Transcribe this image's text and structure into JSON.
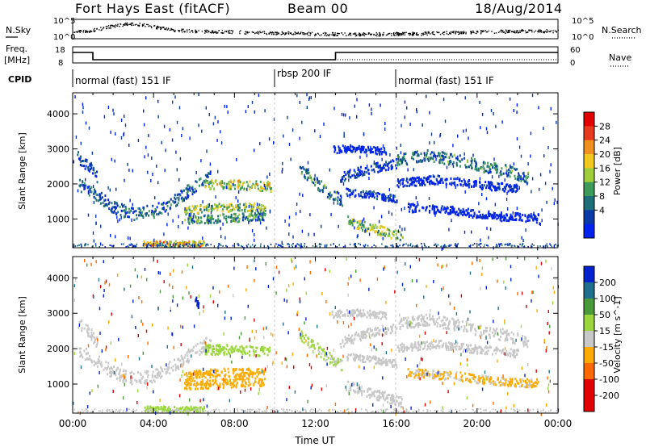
{
  "header": {
    "radar_title": "Fort Hays East (fitACF)",
    "beam": "Beam 00",
    "date": "18/Aug/2014"
  },
  "colors": {
    "power_scale": [
      "#0022ee",
      "#0a3aa8",
      "#1e6e7a",
      "#3d9a5a",
      "#9fce3c",
      "#f0c81e",
      "#f0901e",
      "#e83a1e",
      "#e00000"
    ],
    "velocity_scale": [
      "#e00000",
      "#ff6a00",
      "#ffaa00",
      "#c8c8c8",
      "#9bd63c",
      "#4a9a3a",
      "#1e6e8c",
      "#0022cc"
    ]
  },
  "chart_data": [
    {
      "type": "line",
      "name_left": "N.Sky",
      "name_right": "N.Search",
      "left_ticks": [
        "10^5",
        "10^0"
      ],
      "right_ticks": [
        "10^5",
        "10^0"
      ],
      "x_range_hours": [
        0,
        24
      ]
    },
    {
      "type": "line",
      "ylabel_left": [
        "Freq.",
        "[MHz]"
      ],
      "left_ticks": [
        "18",
        "8"
      ],
      "ylabel_right": "Nave",
      "right_ticks": [
        "60",
        "0"
      ],
      "frequency_steps": [
        {
          "from": 0,
          "to": 1.0,
          "value": 15.5
        },
        {
          "from": 1.0,
          "to": 10.0,
          "value": 11.0
        },
        {
          "from": 10.0,
          "to": 11.5,
          "value": 11.0
        },
        {
          "from": 11.5,
          "to": 13.0,
          "value": 11.0
        },
        {
          "from": 13.0,
          "to": 24.0,
          "value": 15.5
        }
      ]
    },
    {
      "type": "table",
      "label": "CPID",
      "segments": [
        {
          "text": "normal (fast) 151 IF",
          "start": 0,
          "end": 10.0
        },
        {
          "text": "rbsp 200 IF",
          "start": 10.0,
          "end": 16.0
        },
        {
          "text": "normal (fast) 151 IF",
          "start": 16.0,
          "end": 24.0
        }
      ]
    },
    {
      "type": "heatmap",
      "ylabel": "Slant Range [km]",
      "yticks": [
        "1000",
        "2000",
        "3000",
        "4000"
      ],
      "ylim": [
        180,
        4600
      ],
      "colorbar_label": "Power [dB]",
      "colorbar_ticks": [
        "4",
        "8",
        "12",
        "16",
        "20",
        "24",
        "28"
      ],
      "bands": [
        {
          "points": [
            [
              0.3,
              2000
            ],
            [
              1.0,
              1750
            ],
            [
              2.0,
              1350
            ],
            [
              3.0,
              1180
            ],
            [
              4.0,
              1250
            ],
            [
              5.0,
              1550
            ],
            [
              6.0,
              1950
            ],
            [
              6.8,
              2250
            ]
          ],
          "width": 180,
          "peak": 14
        },
        {
          "points": [
            [
              0.2,
              2800
            ],
            [
              0.8,
              2500
            ],
            [
              1.2,
              2200
            ]
          ],
          "width": 160,
          "peak": 10
        },
        {
          "points": [
            [
              6.5,
              2000
            ],
            [
              8.0,
              2000
            ],
            [
              9.8,
              1950
            ]
          ],
          "width": 140,
          "peak": 24
        },
        {
          "points": [
            [
              5.5,
              1250
            ],
            [
              7.0,
              1350
            ],
            [
              9.5,
              1350
            ]
          ],
          "width": 120,
          "peak": 22
        },
        {
          "points": [
            [
              5.5,
              1000
            ],
            [
              7.5,
              1050
            ],
            [
              9.5,
              1100
            ]
          ],
          "width": 120,
          "peak": 18
        },
        {
          "points": [
            [
              3.5,
              320
            ],
            [
              6.5,
              320
            ]
          ],
          "width": 80,
          "peak": 26
        },
        {
          "points": [
            [
              11.2,
              2450
            ],
            [
              11.8,
              2150
            ],
            [
              12.6,
              1800
            ],
            [
              13.3,
              1550
            ]
          ],
          "width": 160,
          "peak": 16
        },
        {
          "points": [
            [
              13.5,
              1000
            ],
            [
              14.5,
              800
            ],
            [
              15.5,
              650
            ],
            [
              16.3,
              500
            ]
          ],
          "width": 140,
          "peak": 22
        },
        {
          "points": [
            [
              13.5,
              1800
            ],
            [
              15.0,
              1700
            ],
            [
              16.0,
              1600
            ]
          ],
          "width": 100,
          "peak": 10
        },
        {
          "points": [
            [
              16.0,
              2700
            ],
            [
              17.5,
              2850
            ],
            [
              19.0,
              2700
            ],
            [
              20.5,
              2500
            ],
            [
              21.5,
              2400
            ],
            [
              22.5,
              2200
            ]
          ],
          "width": 160,
          "peak": 16
        },
        {
          "points": [
            [
              16.0,
              2050
            ],
            [
              18.0,
              2150
            ],
            [
              20.0,
              2000
            ],
            [
              22.0,
              1900
            ]
          ],
          "width": 120,
          "peak": 8
        },
        {
          "points": [
            [
              13.2,
              2200
            ],
            [
              14.5,
              2450
            ],
            [
              16.0,
              2600
            ]
          ],
          "width": 140,
          "peak": 10
        },
        {
          "points": [
            [
              12.8,
              3000
            ],
            [
              14.0,
              3050
            ],
            [
              15.5,
              2950
            ]
          ],
          "width": 100,
          "peak": 6
        },
        {
          "points": [
            [
              16.5,
              1350
            ],
            [
              19.0,
              1250
            ],
            [
              21.0,
              1100
            ],
            [
              23.0,
              1050
            ]
          ],
          "width": 120,
          "peak": 6
        }
      ]
    },
    {
      "type": "heatmap",
      "ylabel": "Slant Range [km]",
      "yticks": [
        "1000",
        "2000",
        "3000",
        "4000"
      ],
      "ylim": [
        180,
        4600
      ],
      "colorbar_label": "Velocity [m s^-1]",
      "colorbar_ticks": [
        "200",
        "100",
        "50",
        "15",
        "-15",
        "-50",
        "-100",
        "-200"
      ],
      "xlabel": "Time UT",
      "xticks": [
        "00:00",
        "04:00",
        "08:00",
        "12:00",
        "16:00",
        "20:00",
        "00:00"
      ],
      "xlim": [
        0,
        24
      ],
      "bands": [
        {
          "points": [
            [
              0.3,
              2000
            ],
            [
              1.0,
              1750
            ],
            [
              2.0,
              1350
            ],
            [
              3.0,
              1180
            ],
            [
              4.0,
              1250
            ],
            [
              5.0,
              1550
            ],
            [
              6.0,
              1950
            ],
            [
              6.8,
              2250
            ]
          ],
          "width": 180,
          "vel": 0
        },
        {
          "points": [
            [
              0.2,
              2800
            ],
            [
              0.8,
              2500
            ],
            [
              1.2,
              2200
            ]
          ],
          "width": 160,
          "vel": 0
        },
        {
          "points": [
            [
              6.5,
              2000
            ],
            [
              8.0,
              2000
            ],
            [
              9.8,
              1950
            ]
          ],
          "width": 140,
          "vel": 30
        },
        {
          "points": [
            [
              5.5,
              1250
            ],
            [
              7.0,
              1350
            ],
            [
              9.5,
              1350
            ]
          ],
          "width": 120,
          "vel": -40
        },
        {
          "points": [
            [
              5.5,
              1000
            ],
            [
              7.5,
              1050
            ],
            [
              9.5,
              1100
            ]
          ],
          "width": 120,
          "vel": -60
        },
        {
          "points": [
            [
              3.5,
              320
            ],
            [
              6.5,
              320
            ]
          ],
          "width": 80,
          "vel": 30
        },
        {
          "points": [
            [
              11.2,
              2450
            ],
            [
              11.8,
              2150
            ],
            [
              12.6,
              1800
            ],
            [
              13.3,
              1550
            ]
          ],
          "width": 160,
          "vel": 20
        },
        {
          "points": [
            [
              13.5,
              1000
            ],
            [
              14.5,
              800
            ],
            [
              15.5,
              650
            ],
            [
              16.3,
              500
            ]
          ],
          "width": 140,
          "vel": 0
        },
        {
          "points": [
            [
              13.5,
              1800
            ],
            [
              15.0,
              1700
            ],
            [
              16.0,
              1600
            ]
          ],
          "width": 100,
          "vel": 0
        },
        {
          "points": [
            [
              16.0,
              2700
            ],
            [
              17.5,
              2850
            ],
            [
              19.0,
              2700
            ],
            [
              20.5,
              2500
            ],
            [
              21.5,
              2400
            ],
            [
              22.5,
              2200
            ]
          ],
          "width": 160,
          "vel": 0
        },
        {
          "points": [
            [
              16.0,
              2050
            ],
            [
              18.0,
              2150
            ],
            [
              20.0,
              2000
            ],
            [
              22.0,
              1900
            ]
          ],
          "width": 120,
          "vel": 0
        },
        {
          "points": [
            [
              13.2,
              2200
            ],
            [
              14.5,
              2450
            ],
            [
              16.0,
              2600
            ]
          ],
          "width": 140,
          "vel": 0
        },
        {
          "points": [
            [
              12.8,
              3000
            ],
            [
              14.0,
              3050
            ],
            [
              15.5,
              2950
            ]
          ],
          "width": 100,
          "vel": 0
        },
        {
          "points": [
            [
              16.5,
              1350
            ],
            [
              19.0,
              1250
            ],
            [
              21.0,
              1100
            ],
            [
              23.0,
              1050
            ]
          ],
          "width": 120,
          "vel": -20
        },
        {
          "points": [
            [
              6.0,
              3400
            ],
            [
              6.2,
              3300
            ]
          ],
          "width": 120,
          "vel": 200
        }
      ]
    }
  ]
}
